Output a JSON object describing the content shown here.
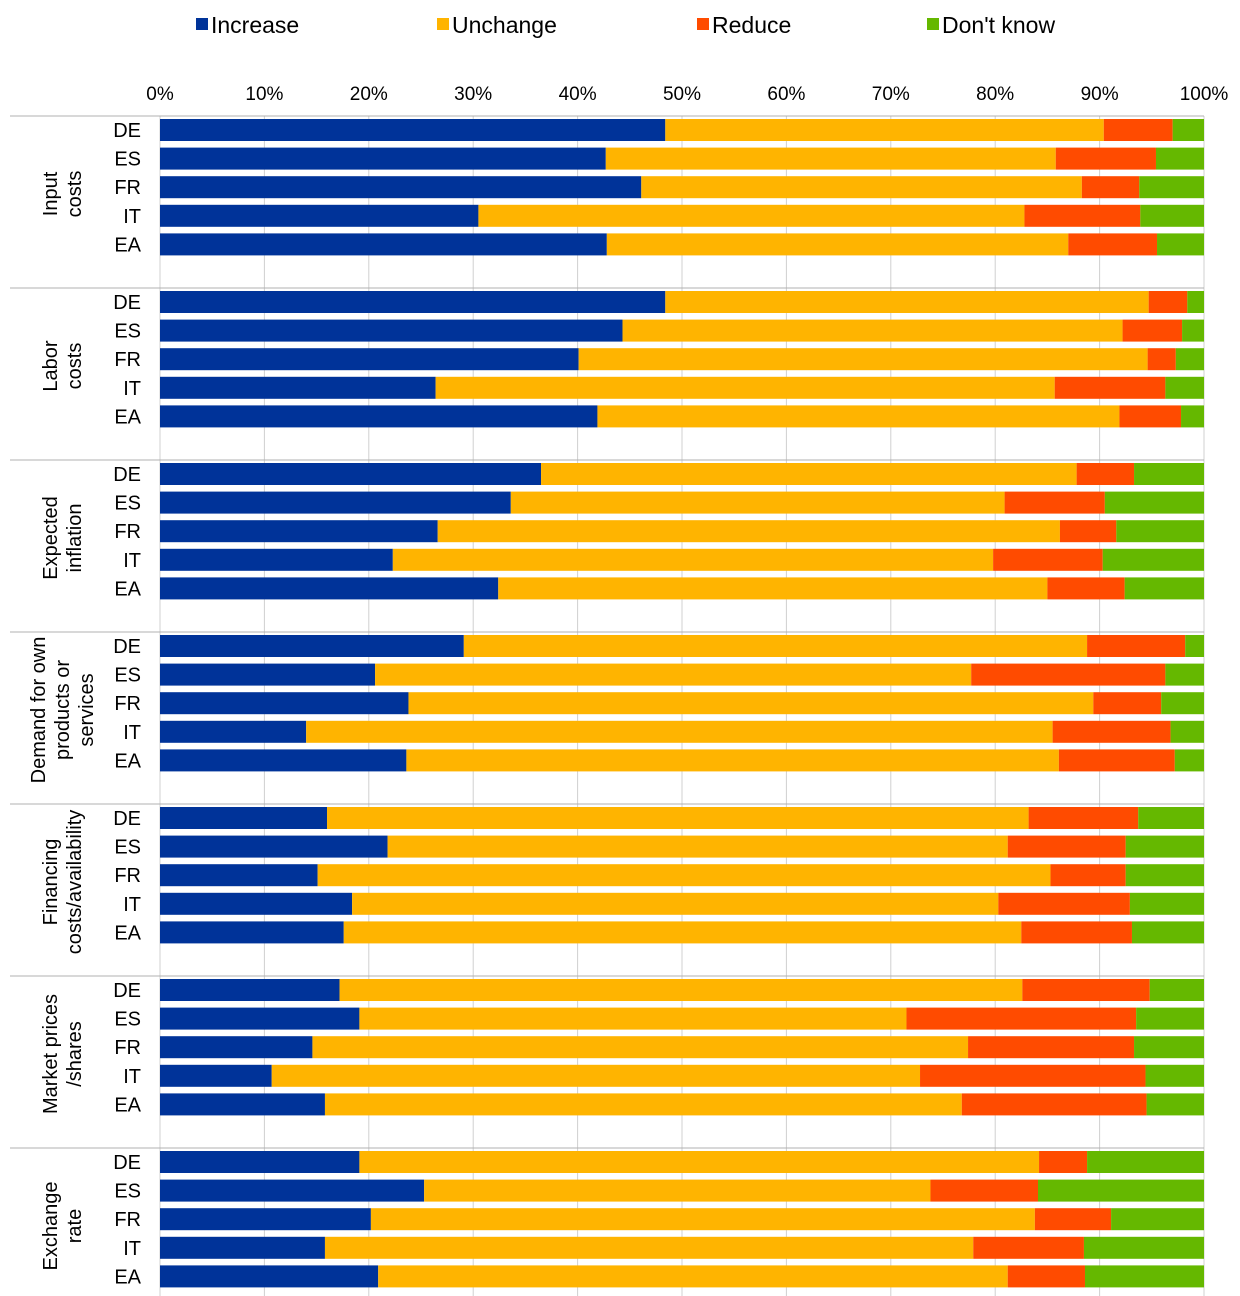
{
  "chart_data": {
    "type": "bar",
    "orientation": "horizontal",
    "stacked": "percent",
    "xlim": [
      0,
      100
    ],
    "x_ticks": [
      "0%",
      "10%",
      "20%",
      "30%",
      "40%",
      "50%",
      "60%",
      "70%",
      "80%",
      "90%",
      "100%"
    ],
    "x_axis_position": "top",
    "legend_position": "top",
    "grid": true,
    "categories": [
      "DE",
      "ES",
      "FR",
      "IT",
      "EA"
    ],
    "series": [
      {
        "name": "Increase",
        "color": "#003399"
      },
      {
        "name": "Unchange",
        "color": "#FFB400"
      },
      {
        "name": "Reduce",
        "color": "#FF4B00"
      },
      {
        "name": "Don't know",
        "color": "#65B800"
      }
    ],
    "groups": [
      {
        "label_lines": [
          "Input",
          "costs"
        ],
        "rows": [
          {
            "category": "DE",
            "values": [
              48.4,
              42.0,
              6.6,
              3.0
            ]
          },
          {
            "category": "ES",
            "values": [
              42.7,
              43.1,
              9.6,
              4.6
            ]
          },
          {
            "category": "FR",
            "values": [
              46.1,
              42.2,
              5.5,
              6.2
            ]
          },
          {
            "category": "IT",
            "values": [
              30.5,
              52.3,
              11.1,
              6.1
            ]
          },
          {
            "category": "EA",
            "values": [
              42.8,
              44.2,
              8.5,
              4.5
            ]
          }
        ]
      },
      {
        "label_lines": [
          "Labor",
          "costs"
        ],
        "rows": [
          {
            "category": "DE",
            "values": [
              48.4,
              46.3,
              3.7,
              1.6
            ]
          },
          {
            "category": "ES",
            "values": [
              44.3,
              47.9,
              5.7,
              2.1
            ]
          },
          {
            "category": "FR",
            "values": [
              40.1,
              54.5,
              2.7,
              2.7
            ]
          },
          {
            "category": "IT",
            "values": [
              26.4,
              59.3,
              10.6,
              3.7
            ]
          },
          {
            "category": "EA",
            "values": [
              41.9,
              50.0,
              5.9,
              2.2
            ]
          }
        ]
      },
      {
        "label_lines": [
          "Expected",
          "inflation"
        ],
        "rows": [
          {
            "category": "DE",
            "values": [
              36.5,
              51.3,
              5.5,
              6.7
            ]
          },
          {
            "category": "ES",
            "values": [
              33.6,
              47.3,
              9.6,
              9.5
            ]
          },
          {
            "category": "FR",
            "values": [
              26.6,
              59.6,
              5.4,
              8.4
            ]
          },
          {
            "category": "IT",
            "values": [
              22.3,
              57.5,
              10.5,
              9.7
            ]
          },
          {
            "category": "EA",
            "values": [
              32.4,
              52.6,
              7.4,
              7.6
            ]
          }
        ]
      },
      {
        "label_lines": [
          "Demand for own",
          "products or",
          "services"
        ],
        "rows": [
          {
            "category": "DE",
            "values": [
              29.1,
              59.7,
              9.4,
              1.8
            ]
          },
          {
            "category": "ES",
            "values": [
              20.6,
              57.1,
              18.6,
              3.7
            ]
          },
          {
            "category": "FR",
            "values": [
              23.8,
              65.6,
              6.5,
              4.1
            ]
          },
          {
            "category": "IT",
            "values": [
              14.0,
              71.5,
              11.3,
              3.2
            ]
          },
          {
            "category": "EA",
            "values": [
              23.6,
              62.5,
              11.1,
              2.8
            ]
          }
        ]
      },
      {
        "label_lines": [
          "Financing",
          "costs/availability"
        ],
        "rows": [
          {
            "category": "DE",
            "values": [
              16.0,
              67.2,
              10.5,
              6.3
            ]
          },
          {
            "category": "ES",
            "values": [
              21.8,
              59.4,
              11.3,
              7.5
            ]
          },
          {
            "category": "FR",
            "values": [
              15.1,
              70.2,
              7.2,
              7.5
            ]
          },
          {
            "category": "IT",
            "values": [
              18.4,
              61.9,
              12.6,
              7.1
            ]
          },
          {
            "category": "EA",
            "values": [
              17.6,
              64.9,
              10.6,
              6.9
            ]
          }
        ]
      },
      {
        "label_lines": [
          "Market prices",
          "/shares"
        ],
        "rows": [
          {
            "category": "DE",
            "values": [
              17.2,
              65.4,
              12.2,
              5.2
            ]
          },
          {
            "category": "ES",
            "values": [
              19.1,
              52.4,
              22.0,
              6.5
            ]
          },
          {
            "category": "FR",
            "values": [
              14.6,
              62.8,
              15.9,
              6.7
            ]
          },
          {
            "category": "IT",
            "values": [
              10.7,
              62.1,
              21.6,
              5.6
            ]
          },
          {
            "category": "EA",
            "values": [
              15.8,
              61.0,
              17.7,
              5.5
            ]
          }
        ]
      },
      {
        "label_lines": [
          "Exchange",
          "rate"
        ],
        "rows": [
          {
            "category": "DE",
            "values": [
              19.1,
              65.1,
              4.6,
              11.2
            ]
          },
          {
            "category": "ES",
            "values": [
              25.3,
              48.5,
              10.3,
              15.9
            ]
          },
          {
            "category": "FR",
            "values": [
              20.2,
              63.6,
              7.3,
              8.9
            ]
          },
          {
            "category": "IT",
            "values": [
              15.8,
              62.1,
              10.6,
              11.5
            ]
          },
          {
            "category": "EA",
            "values": [
              20.9,
              60.3,
              7.4,
              11.4
            ]
          }
        ]
      }
    ]
  }
}
